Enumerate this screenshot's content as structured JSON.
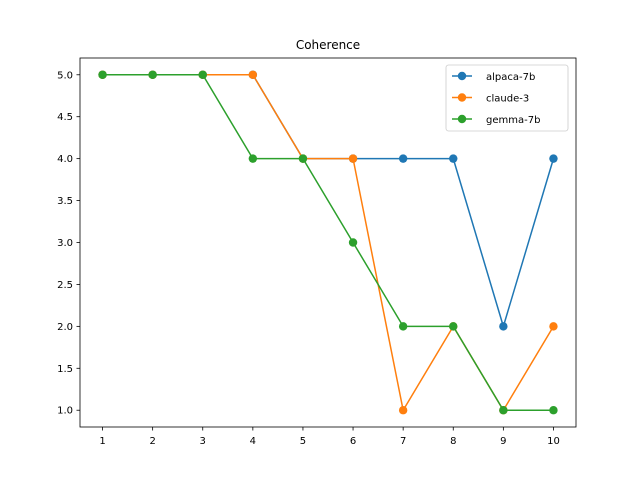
{
  "chart_data": {
    "type": "line",
    "title": "Coherence",
    "xlabel": "",
    "ylabel": "",
    "x": [
      1,
      2,
      3,
      4,
      5,
      6,
      7,
      8,
      9,
      10
    ],
    "xlim": [
      0.55,
      10.45
    ],
    "ylim": [
      0.8,
      5.2
    ],
    "xticks": [
      1,
      2,
      3,
      4,
      5,
      6,
      7,
      8,
      9,
      10
    ],
    "yticks": [
      "1.0",
      "1.5",
      "2.0",
      "2.5",
      "3.0",
      "3.5",
      "4.0",
      "4.5",
      "5.0"
    ],
    "grid": false,
    "legend_position": "upper right",
    "series": [
      {
        "name": "alpaca-7b",
        "color": "#1f77b4",
        "values": [
          5,
          5,
          5,
          5,
          4,
          4,
          4,
          4,
          2,
          4
        ]
      },
      {
        "name": "claude-3",
        "color": "#ff7f0e",
        "values": [
          5,
          5,
          5,
          5,
          4,
          4,
          1,
          2,
          1,
          2
        ]
      },
      {
        "name": "gemma-7b",
        "color": "#2ca02c",
        "values": [
          5,
          5,
          5,
          4,
          4,
          3,
          2,
          2,
          1,
          1
        ]
      }
    ]
  }
}
